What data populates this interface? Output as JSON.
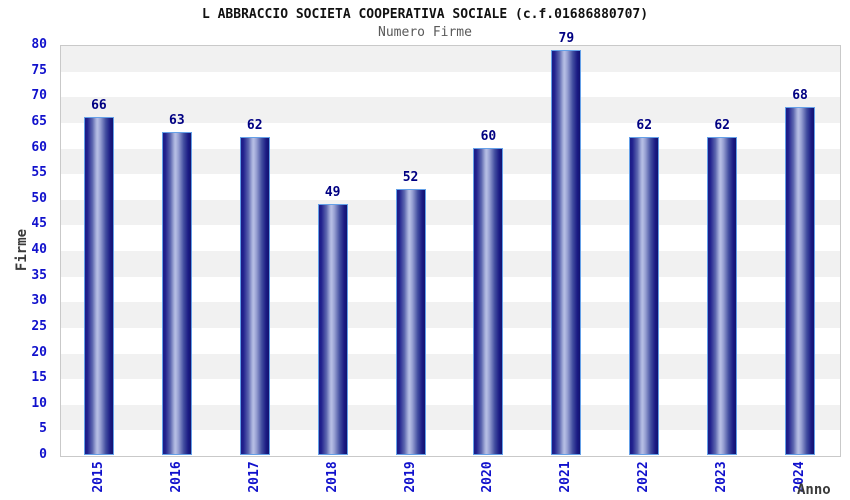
{
  "chart_data": {
    "type": "bar",
    "title": "L ABBRACCIO SOCIETA COOPERATIVA SOCIALE (c.f.01686880707)",
    "subtitle": "Numero Firme",
    "xlabel": "Anno",
    "ylabel": "Firme",
    "categories": [
      "2015",
      "2016",
      "2017",
      "2018",
      "2019",
      "2020",
      "2021",
      "2022",
      "2023",
      "2024"
    ],
    "values": [
      66,
      63,
      62,
      49,
      52,
      60,
      79,
      62,
      62,
      68
    ],
    "ylim": [
      0,
      80
    ],
    "ytick_step": 5,
    "yticks": [
      0,
      5,
      10,
      15,
      20,
      25,
      30,
      35,
      40,
      45,
      50,
      55,
      60,
      65,
      70,
      75,
      80
    ],
    "grid": "horizontal-bands",
    "legend_position": "none",
    "value_labels_shown": true
  },
  "colors": {
    "title": "#111111",
    "subtitle": "#5a5a5a",
    "axis_title": "#3a3a3a",
    "tick_label_blue": "#1111cc",
    "value_label_navy": "#000082",
    "bar_edge_dark": "#1c1c87",
    "bar_highlight": "#b7bfe5",
    "bar_border": "#64a0e8",
    "band_gray": "#f1f1f1",
    "band_white": "#ffffff",
    "plot_border": "#c9c9c9",
    "background": "#ffffff"
  }
}
